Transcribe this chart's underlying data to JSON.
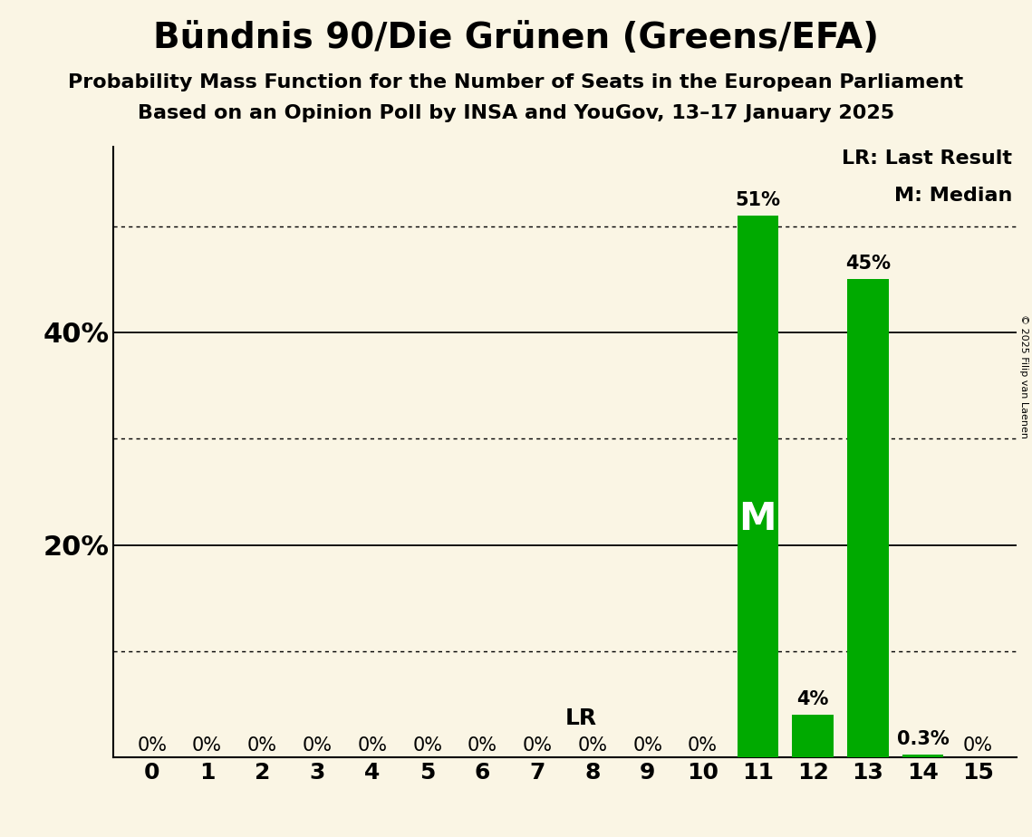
{
  "title": "Bündnis 90/Die Grünen (Greens/EFA)",
  "subtitle1": "Probability Mass Function for the Number of Seats in the European Parliament",
  "subtitle2": "Based on an Opinion Poll by INSA and YouGov, 13–17 January 2025",
  "copyright": "© 2025 Filip van Laenen",
  "categories": [
    0,
    1,
    2,
    3,
    4,
    5,
    6,
    7,
    8,
    9,
    10,
    11,
    12,
    13,
    14,
    15
  ],
  "values": [
    0.0,
    0.0,
    0.0,
    0.0,
    0.0,
    0.0,
    0.0,
    0.0,
    0.0,
    0.0,
    0.0,
    0.51,
    0.04,
    0.45,
    0.003,
    0.0
  ],
  "bar_color": "#00aa00",
  "background_color": "#faf5e4",
  "median_seat": 11,
  "lr_label": "LR",
  "median_label": "M",
  "legend_lr": "LR: Last Result",
  "legend_m": "M: Median",
  "bar_labels": [
    "0%",
    "0%",
    "0%",
    "0%",
    "0%",
    "0%",
    "0%",
    "0%",
    "0%",
    "0%",
    "0%",
    "51%",
    "4%",
    "45%",
    "0.3%",
    "0%"
  ],
  "ylim": [
    0,
    0.575
  ],
  "solid_yticks": [
    0.2,
    0.4
  ],
  "solid_ytick_labels": [
    "20%",
    "40%"
  ],
  "dotted_yticks": [
    0.1,
    0.3,
    0.5
  ],
  "title_fontsize": 28,
  "subtitle_fontsize": 16,
  "ylabel_fontsize": 22,
  "tick_fontsize": 18,
  "bar_label_fontsize": 15,
  "median_label_fontsize": 30,
  "legend_fontsize": 16,
  "lr_fontsize": 18
}
